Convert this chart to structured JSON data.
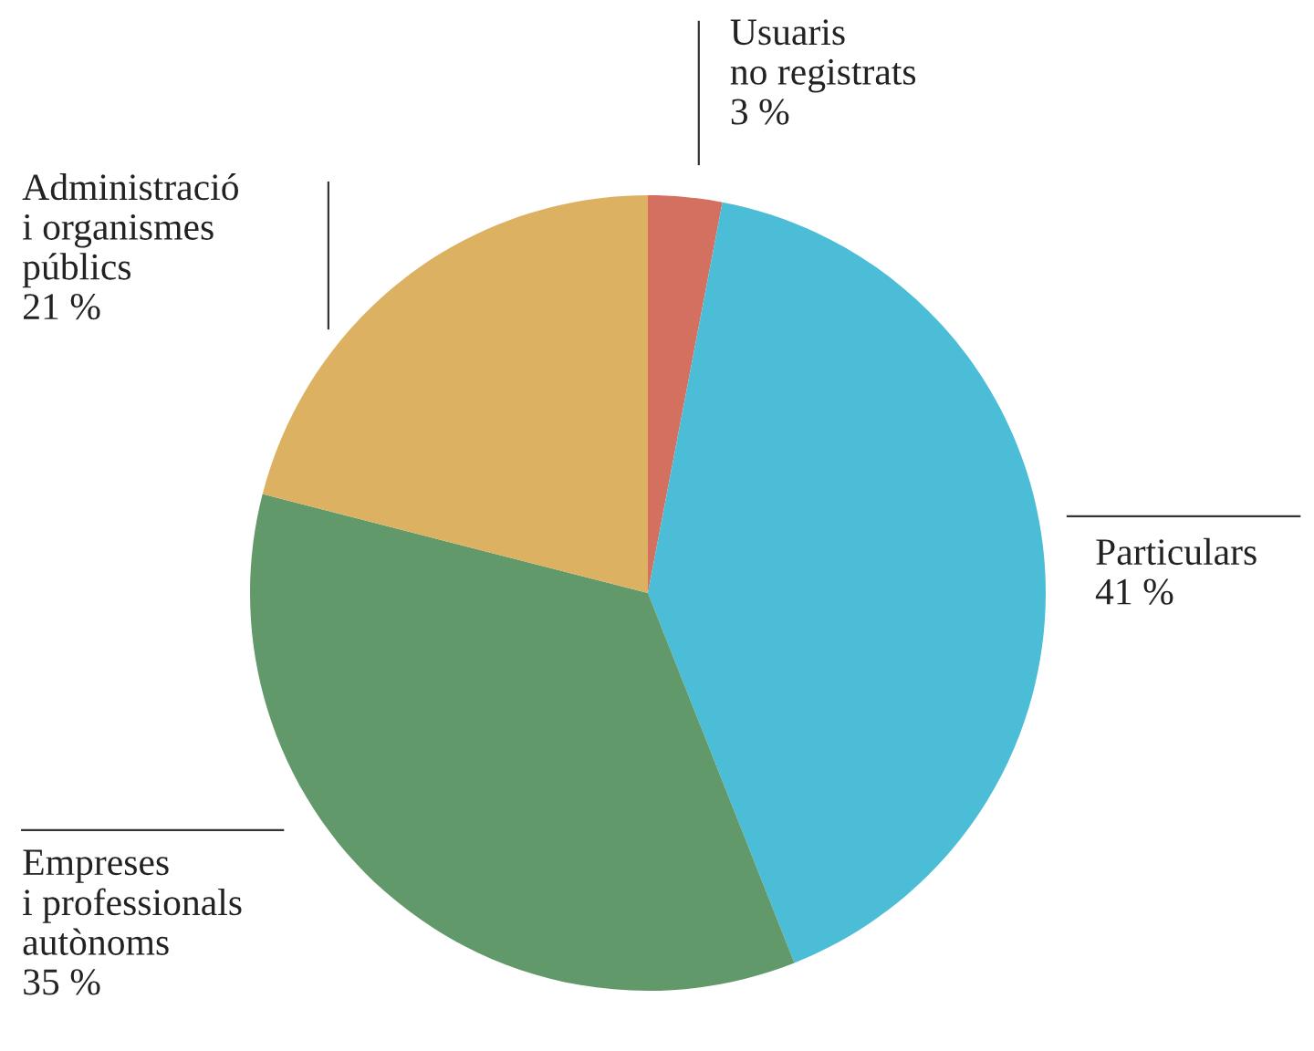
{
  "chart_data": {
    "type": "pie",
    "categories": [
      "Usuaris\nno registrats",
      "Particulars",
      "Empreses\ni professionals\nautònoms",
      "Administració\ni organismes\npúblics"
    ],
    "values": [
      3,
      41,
      35,
      21
    ],
    "value_labels": [
      "3 %",
      "41 %",
      "35 %",
      "21 %"
    ],
    "colors": [
      "#d4705f",
      "#4bbdd6",
      "#62996a",
      "#dcb262"
    ]
  }
}
